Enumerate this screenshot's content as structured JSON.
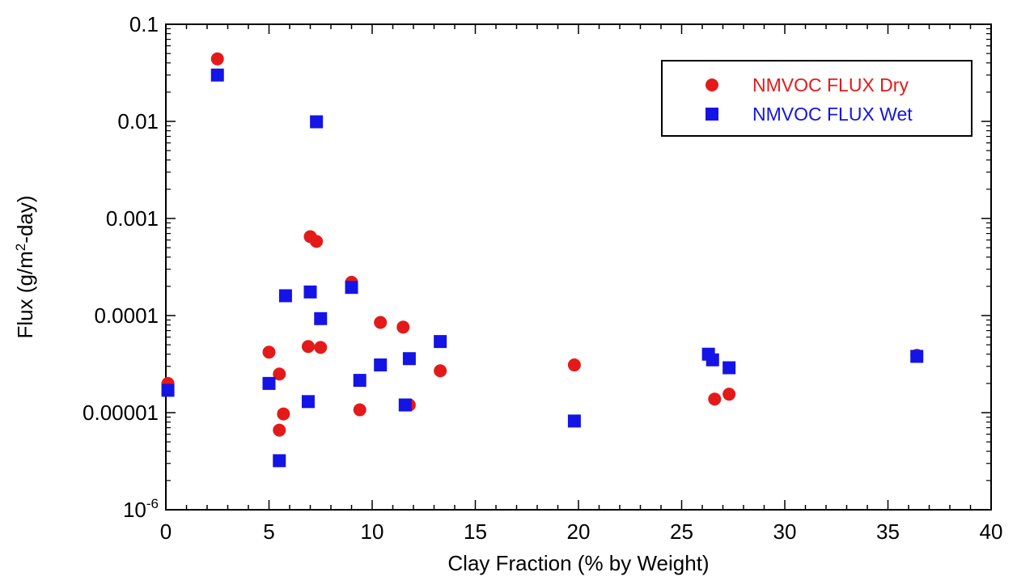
{
  "chart_data": {
    "type": "scatter",
    "title": "",
    "xlabel": "Clay Fraction (% by Weight)",
    "ylabel": "Flux (g/m²-day)",
    "xlim": [
      0,
      40
    ],
    "ylim": [
      1e-06,
      0.1
    ],
    "y_scale": "log",
    "x_ticks": [
      0,
      5,
      10,
      15,
      20,
      25,
      30,
      35,
      40
    ],
    "y_tick_labels": [
      "10",
      "0.00001",
      "0.0001",
      "0.001",
      "0.01",
      "0.1"
    ],
    "legend_position": "top-right",
    "grid": false,
    "series": [
      {
        "name": "NMVOC FLUX Dry",
        "marker": "circle",
        "color": "#e41a1a",
        "points": [
          {
            "x": 0.1,
            "y": 2e-05
          },
          {
            "x": 2.5,
            "y": 0.044
          },
          {
            "x": 5.0,
            "y": 4.2e-05
          },
          {
            "x": 5.5,
            "y": 2.5e-05
          },
          {
            "x": 5.5,
            "y": 6.6e-06
          },
          {
            "x": 5.7,
            "y": 9.7e-06
          },
          {
            "x": 6.9,
            "y": 4.8e-05
          },
          {
            "x": 7.0,
            "y": 0.00065
          },
          {
            "x": 7.3,
            "y": 0.00058
          },
          {
            "x": 7.5,
            "y": 4.7e-05
          },
          {
            "x": 9.0,
            "y": 0.00022
          },
          {
            "x": 9.4,
            "y": 1.07e-05
          },
          {
            "x": 10.4,
            "y": 8.5e-05
          },
          {
            "x": 11.5,
            "y": 7.6e-05
          },
          {
            "x": 11.8,
            "y": 1.2e-05
          },
          {
            "x": 13.3,
            "y": 2.7e-05
          },
          {
            "x": 19.8,
            "y": 3.1e-05
          },
          {
            "x": 26.6,
            "y": 1.38e-05
          },
          {
            "x": 27.3,
            "y": 1.55e-05
          },
          {
            "x": 36.4,
            "y": 3.9e-05
          }
        ]
      },
      {
        "name": "NMVOC FLUX Wet",
        "marker": "square",
        "color": "#1414e6",
        "points": [
          {
            "x": 0.1,
            "y": 1.7e-05
          },
          {
            "x": 2.5,
            "y": 0.03
          },
          {
            "x": 5.0,
            "y": 2e-05
          },
          {
            "x": 5.5,
            "y": 3.2e-06
          },
          {
            "x": 5.8,
            "y": 0.00016
          },
          {
            "x": 6.9,
            "y": 1.3e-05
          },
          {
            "x": 7.0,
            "y": 0.000175
          },
          {
            "x": 7.3,
            "y": 0.0099
          },
          {
            "x": 7.5,
            "y": 9.3e-05
          },
          {
            "x": 9.0,
            "y": 0.000195
          },
          {
            "x": 9.4,
            "y": 2.15e-05
          },
          {
            "x": 10.4,
            "y": 3.1e-05
          },
          {
            "x": 11.6,
            "y": 1.2e-05
          },
          {
            "x": 11.8,
            "y": 3.6e-05
          },
          {
            "x": 13.3,
            "y": 5.4e-05
          },
          {
            "x": 19.8,
            "y": 8.2e-06
          },
          {
            "x": 26.3,
            "y": 4e-05
          },
          {
            "x": 26.5,
            "y": 3.5e-05
          },
          {
            "x": 27.3,
            "y": 2.9e-05
          },
          {
            "x": 36.4,
            "y": 3.8e-05
          }
        ]
      }
    ]
  }
}
